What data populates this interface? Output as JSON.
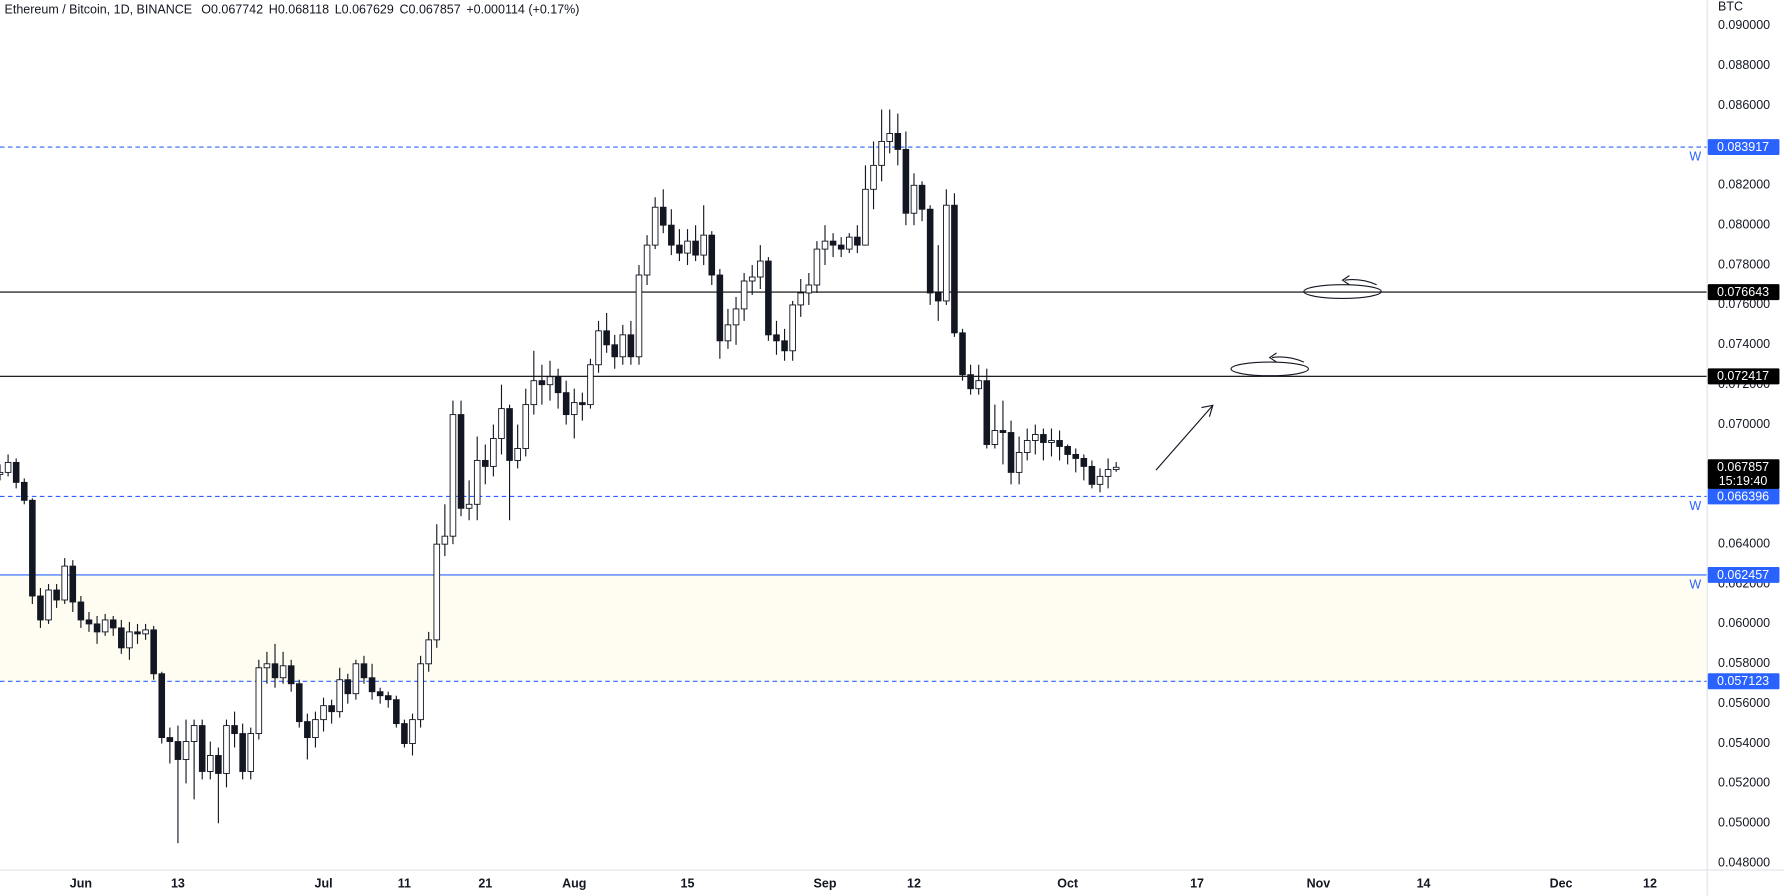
{
  "chart_data": {
    "type": "candlestick",
    "title": "Ethereum / Bitcoin, 1D, BINANCE",
    "ohlc_labels": [
      "O",
      "H",
      "L",
      "C"
    ],
    "change": "+0.000114 (+0.17%)",
    "y_unit": "BTC",
    "countdown": "15:19:40",
    "up_color": "#ffffff",
    "down_color": "#131722",
    "grid": false,
    "x": [
      "05-22",
      "05-23",
      "05-24",
      "05-25",
      "05-26",
      "05-27",
      "05-28",
      "05-29",
      "05-30",
      "05-31",
      "06-01",
      "06-02",
      "06-03",
      "06-04",
      "06-05",
      "06-06",
      "06-07",
      "06-08",
      "06-09",
      "06-10",
      "06-11",
      "06-12",
      "06-13",
      "06-14",
      "06-15",
      "06-16",
      "06-17",
      "06-18",
      "06-19",
      "06-20",
      "06-21",
      "06-22",
      "06-23",
      "06-24",
      "06-25",
      "06-26",
      "06-27",
      "06-28",
      "06-29",
      "06-30",
      "07-01",
      "07-02",
      "07-03",
      "07-04",
      "07-05",
      "07-06",
      "07-07",
      "07-08",
      "07-09",
      "07-10",
      "07-11",
      "07-12",
      "07-13",
      "07-14",
      "07-15",
      "07-16",
      "07-17",
      "07-18",
      "07-19",
      "07-20",
      "07-21",
      "07-22",
      "07-23",
      "07-24",
      "07-25",
      "07-26",
      "07-27",
      "07-28",
      "07-29",
      "07-30",
      "07-31",
      "08-01",
      "08-02",
      "08-03",
      "08-04",
      "08-05",
      "08-06",
      "08-07",
      "08-08",
      "08-09",
      "08-10",
      "08-11",
      "08-12",
      "08-13",
      "08-14",
      "08-15",
      "08-16",
      "08-17",
      "08-18",
      "08-19",
      "08-20",
      "08-21",
      "08-22",
      "08-23",
      "08-24",
      "08-25",
      "08-26",
      "08-27",
      "08-28",
      "08-29",
      "08-30",
      "08-31",
      "09-01",
      "09-02",
      "09-03",
      "09-04",
      "09-05",
      "09-06",
      "09-07",
      "09-08",
      "09-09",
      "09-10",
      "09-11",
      "09-12",
      "09-13",
      "09-14",
      "09-15",
      "09-16",
      "09-17",
      "09-18",
      "09-19",
      "09-20",
      "09-21",
      "09-22",
      "09-23",
      "09-24",
      "09-25",
      "09-26",
      "09-27",
      "09-28",
      "09-29",
      "09-30",
      "10-01",
      "10-02",
      "10-03",
      "10-04",
      "10-05",
      "10-06",
      "10-07"
    ],
    "open": [
      0.0675,
      0.0676,
      0.0681,
      0.0671,
      0.0662,
      0.0614,
      0.0602,
      0.0617,
      0.0612,
      0.0629,
      0.0611,
      0.0602,
      0.06,
      0.0596,
      0.0602,
      0.0598,
      0.0588,
      0.0596,
      0.0595,
      0.0597,
      0.0575,
      0.0543,
      0.0541,
      0.0532,
      0.0541,
      0.0549,
      0.0526,
      0.0534,
      0.0525,
      0.0549,
      0.0545,
      0.0526,
      0.0545,
      0.0578,
      0.058,
      0.0573,
      0.0579,
      0.057,
      0.0551,
      0.0543,
      0.0552,
      0.0559,
      0.0556,
      0.0572,
      0.0565,
      0.058,
      0.0573,
      0.0566,
      0.0564,
      0.0562,
      0.055,
      0.054,
      0.0552,
      0.058,
      0.0592,
      0.064,
      0.0644,
      0.0705,
      0.0658,
      0.066,
      0.0682,
      0.0679,
      0.0693,
      0.0708,
      0.0682,
      0.0688,
      0.071,
      0.0722,
      0.072,
      0.0724,
      0.0716,
      0.0705,
      0.0711,
      0.071,
      0.073,
      0.0747,
      0.074,
      0.0734,
      0.0745,
      0.0734,
      0.0775,
      0.079,
      0.0809,
      0.08,
      0.079,
      0.0786,
      0.0792,
      0.0785,
      0.0795,
      0.0775,
      0.0742,
      0.075,
      0.0758,
      0.0772,
      0.0774,
      0.0782,
      0.0745,
      0.0742,
      0.0737,
      0.076,
      0.0766,
      0.077,
      0.0788,
      0.0792,
      0.079,
      0.0788,
      0.0794,
      0.079,
      0.0818,
      0.083,
      0.0842,
      0.0846,
      0.0838,
      0.0806,
      0.082,
      0.0808,
      0.0766,
      0.0762,
      0.081,
      0.0746,
      0.0725,
      0.0718,
      0.0722,
      0.069,
      0.0697,
      0.0696,
      0.0676,
      0.0686,
      0.0692,
      0.0695,
      0.0691,
      0.0692,
      0.0689,
      0.0685,
      0.0683,
      0.0679,
      0.067,
      0.0674,
      0.067742
    ],
    "high": [
      0.068,
      0.0685,
      0.0683,
      0.0673,
      0.0663,
      0.0618,
      0.062,
      0.062,
      0.0633,
      0.0632,
      0.0614,
      0.0606,
      0.0604,
      0.0605,
      0.0604,
      0.0602,
      0.0601,
      0.06,
      0.06,
      0.0599,
      0.0576,
      0.0548,
      0.0549,
      0.0552,
      0.0552,
      0.0552,
      0.0541,
      0.0538,
      0.0552,
      0.0556,
      0.055,
      0.0548,
      0.0582,
      0.0586,
      0.059,
      0.0586,
      0.0582,
      0.0572,
      0.0555,
      0.0556,
      0.0563,
      0.0562,
      0.0578,
      0.0575,
      0.0582,
      0.0584,
      0.058,
      0.0568,
      0.0566,
      0.0564,
      0.0552,
      0.0555,
      0.0584,
      0.0596,
      0.065,
      0.066,
      0.0712,
      0.0712,
      0.0672,
      0.0694,
      0.069,
      0.07,
      0.072,
      0.071,
      0.07,
      0.0718,
      0.0737,
      0.073,
      0.0732,
      0.0728,
      0.0722,
      0.0718,
      0.0716,
      0.0733,
      0.0752,
      0.0756,
      0.0745,
      0.075,
      0.0752,
      0.078,
      0.0795,
      0.0814,
      0.0818,
      0.0808,
      0.0798,
      0.0798,
      0.08,
      0.081,
      0.0797,
      0.0778,
      0.0758,
      0.0764,
      0.0776,
      0.078,
      0.079,
      0.0784,
      0.0752,
      0.0748,
      0.0762,
      0.0773,
      0.0776,
      0.0792,
      0.08,
      0.0796,
      0.0794,
      0.0796,
      0.08,
      0.083,
      0.0842,
      0.0858,
      0.0858,
      0.0856,
      0.0847,
      0.0826,
      0.0822,
      0.081,
      0.079,
      0.0818,
      0.0816,
      0.0748,
      0.073,
      0.073,
      0.0728,
      0.071,
      0.0712,
      0.0702,
      0.0694,
      0.0698,
      0.07,
      0.0698,
      0.0698,
      0.0697,
      0.069,
      0.0688,
      0.0685,
      0.0682,
      0.0678,
      0.0683,
      0.068118
    ],
    "low": [
      0.0672,
      0.0674,
      0.0668,
      0.066,
      0.061,
      0.0598,
      0.06,
      0.0608,
      0.061,
      0.0606,
      0.0598,
      0.0596,
      0.059,
      0.0594,
      0.0594,
      0.0585,
      0.0582,
      0.059,
      0.0592,
      0.0572,
      0.054,
      0.053,
      0.049,
      0.052,
      0.0512,
      0.0522,
      0.0522,
      0.05,
      0.0518,
      0.0538,
      0.0522,
      0.0522,
      0.0542,
      0.057,
      0.0568,
      0.057,
      0.0566,
      0.0548,
      0.0532,
      0.0538,
      0.0546,
      0.055,
      0.0553,
      0.056,
      0.0562,
      0.057,
      0.0562,
      0.056,
      0.0558,
      0.0548,
      0.0538,
      0.0534,
      0.0548,
      0.0576,
      0.0588,
      0.0634,
      0.064,
      0.0654,
      0.0652,
      0.0652,
      0.067,
      0.0674,
      0.0685,
      0.0652,
      0.0678,
      0.0684,
      0.0705,
      0.071,
      0.0712,
      0.0708,
      0.07,
      0.0693,
      0.0702,
      0.0708,
      0.0726,
      0.0736,
      0.0728,
      0.073,
      0.073,
      0.073,
      0.077,
      0.0788,
      0.0796,
      0.0785,
      0.0782,
      0.078,
      0.0782,
      0.078,
      0.077,
      0.0733,
      0.0738,
      0.074,
      0.0752,
      0.0765,
      0.0768,
      0.0742,
      0.0735,
      0.0732,
      0.0732,
      0.0754,
      0.076,
      0.0766,
      0.078,
      0.0784,
      0.0784,
      0.0786,
      0.0786,
      0.079,
      0.0808,
      0.0822,
      0.0836,
      0.083,
      0.08,
      0.08,
      0.0802,
      0.076,
      0.0752,
      0.076,
      0.0744,
      0.0722,
      0.0715,
      0.0715,
      0.0688,
      0.0688,
      0.068,
      0.067,
      0.067,
      0.0682,
      0.0685,
      0.0682,
      0.0684,
      0.0682,
      0.068,
      0.0676,
      0.0672,
      0.0668,
      0.0666,
      0.0668,
      0.067629
    ],
    "close": [
      0.0676,
      0.0681,
      0.0671,
      0.0662,
      0.0614,
      0.0602,
      0.0617,
      0.0612,
      0.0629,
      0.0611,
      0.0602,
      0.06,
      0.0596,
      0.0602,
      0.0598,
      0.0588,
      0.0596,
      0.0595,
      0.0597,
      0.0575,
      0.0543,
      0.0541,
      0.0532,
      0.0541,
      0.0549,
      0.0526,
      0.0534,
      0.0525,
      0.0549,
      0.0545,
      0.0526,
      0.0545,
      0.0578,
      0.058,
      0.0573,
      0.0579,
      0.057,
      0.0551,
      0.0543,
      0.0552,
      0.0559,
      0.0556,
      0.0572,
      0.0565,
      0.058,
      0.0573,
      0.0566,
      0.0564,
      0.0562,
      0.055,
      0.054,
      0.0552,
      0.058,
      0.0592,
      0.064,
      0.0644,
      0.0705,
      0.0658,
      0.066,
      0.0682,
      0.0679,
      0.0693,
      0.0708,
      0.0682,
      0.0688,
      0.071,
      0.0722,
      0.072,
      0.0724,
      0.0716,
      0.0705,
      0.0711,
      0.071,
      0.073,
      0.0747,
      0.074,
      0.0734,
      0.0745,
      0.0734,
      0.0775,
      0.079,
      0.0809,
      0.08,
      0.079,
      0.0786,
      0.0792,
      0.0785,
      0.0795,
      0.0775,
      0.0742,
      0.075,
      0.0758,
      0.0772,
      0.0774,
      0.0782,
      0.0745,
      0.0742,
      0.0737,
      0.076,
      0.0766,
      0.077,
      0.0788,
      0.0792,
      0.079,
      0.0788,
      0.0794,
      0.079,
      0.0818,
      0.083,
      0.0842,
      0.0846,
      0.0838,
      0.0806,
      0.082,
      0.0808,
      0.0766,
      0.0762,
      0.081,
      0.0746,
      0.0725,
      0.0718,
      0.0722,
      0.069,
      0.0697,
      0.0696,
      0.0676,
      0.0686,
      0.0692,
      0.0695,
      0.0691,
      0.0692,
      0.0689,
      0.0685,
      0.0683,
      0.0679,
      0.067,
      0.0674,
      0.067742,
      0.067857
    ],
    "xlim": [
      "05-22",
      "12-19"
    ],
    "ylim": [
      0.04768,
      0.09128
    ],
    "xticks": [
      {
        "value": "06-01",
        "label": "Jun"
      },
      {
        "value": "06-13",
        "label": "13"
      },
      {
        "value": "07-01",
        "label": "Jul"
      },
      {
        "value": "07-11",
        "label": "11"
      },
      {
        "value": "07-21",
        "label": "21"
      },
      {
        "value": "08-01",
        "label": "Aug"
      },
      {
        "value": "08-15",
        "label": "15"
      },
      {
        "value": "09-01",
        "label": "Sep"
      },
      {
        "value": "09-12",
        "label": "12"
      },
      {
        "value": "10-01",
        "label": "Oct"
      },
      {
        "value": "10-17",
        "label": "17"
      },
      {
        "value": "11-01",
        "label": "Nov"
      },
      {
        "value": "11-14",
        "label": "14"
      },
      {
        "value": "12-01",
        "label": "Dec"
      },
      {
        "value": "12-12",
        "label": "12"
      }
    ],
    "yticks": [
      {
        "value": 0.09,
        "label": "0.090000"
      },
      {
        "value": 0.088,
        "label": "0.088000"
      },
      {
        "value": 0.086,
        "label": "0.086000"
      },
      {
        "value": 0.082,
        "label": "0.082000"
      },
      {
        "value": 0.08,
        "label": "0.080000"
      },
      {
        "value": 0.078,
        "label": "0.078000"
      },
      {
        "value": 0.076,
        "label": "0.076000"
      },
      {
        "value": 0.074,
        "label": "0.074000"
      },
      {
        "value": 0.072,
        "label": "0.072000"
      },
      {
        "value": 0.07,
        "label": "0.070000"
      },
      {
        "value": 0.064,
        "label": "0.064000"
      },
      {
        "value": 0.062,
        "label": "0.062000"
      },
      {
        "value": 0.06,
        "label": "0.060000"
      },
      {
        "value": 0.058,
        "label": "0.058000"
      },
      {
        "value": 0.056,
        "label": "0.056000"
      },
      {
        "value": 0.054,
        "label": "0.054000"
      },
      {
        "value": 0.052,
        "label": "0.052000"
      },
      {
        "value": 0.05,
        "label": "0.050000"
      },
      {
        "value": 0.048,
        "label": "0.048000"
      }
    ],
    "hlines": [
      {
        "value": 0.083917,
        "color": "#2962ff",
        "dash": true,
        "label": "W"
      },
      {
        "value": 0.076643,
        "color": "#000000",
        "dash": false
      },
      {
        "value": 0.072417,
        "color": "#000000",
        "dash": false
      },
      {
        "value": 0.066396,
        "color": "#2962ff",
        "dash": true,
        "label": "W"
      },
      {
        "value": 0.062457,
        "color": "#2962ff",
        "dash": false,
        "label": "W",
        "zone_color": "#fffdf2"
      },
      {
        "value": 0.057123,
        "color": "#2962ff",
        "dash": true
      }
    ]
  }
}
